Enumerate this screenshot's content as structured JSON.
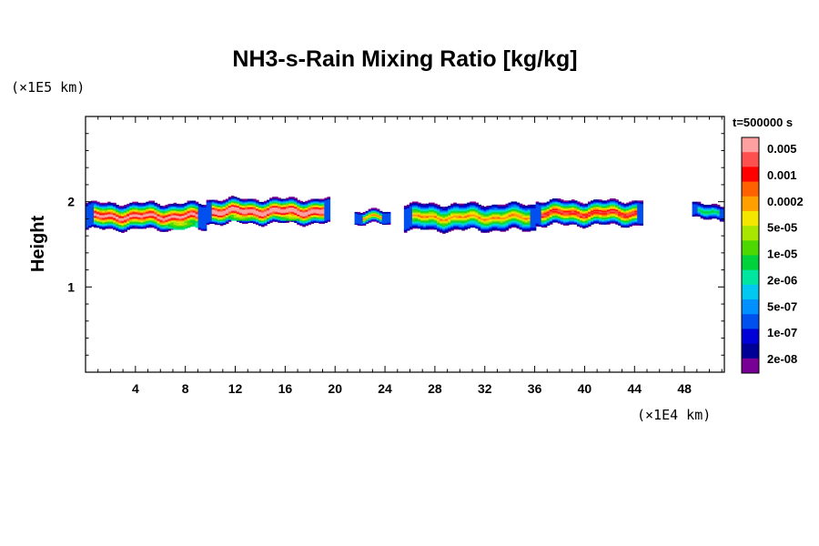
{
  "chart_data": {
    "type": "heatmap",
    "title": "NH3-s-Rain Mixing Ratio [kg/kg]",
    "ylabel": "Height",
    "y_unit": "(×1E5 km)",
    "x_unit": "(×1E4 km)",
    "time_label": "t=500000 s",
    "xlim": [
      0,
      51.2
    ],
    "ylim": [
      0,
      3.0
    ],
    "x_ticks": [
      "4",
      "8",
      "12",
      "16",
      "20",
      "24",
      "28",
      "32",
      "36",
      "40",
      "44",
      "48"
    ],
    "x_tick_values": [
      4,
      8,
      12,
      16,
      20,
      24,
      28,
      32,
      36,
      40,
      44,
      48
    ],
    "y_ticks": [
      "1",
      "2"
    ],
    "y_tick_values": [
      1,
      2
    ],
    "colorbar": {
      "labels": [
        "0.005",
        "0.001",
        "0.0002",
        "5e-05",
        "1e-05",
        "2e-06",
        "5e-07",
        "1e-07",
        "2e-08"
      ],
      "colors": [
        "#ffa0a0",
        "#ff5050",
        "#ff0000",
        "#ff6000",
        "#ff9f00",
        "#f5e600",
        "#a8e600",
        "#4cd800",
        "#00d23c",
        "#00e6a0",
        "#00c8f0",
        "#0090ff",
        "#0050f0",
        "#0000d8",
        "#000096",
        "#780096"
      ]
    },
    "cloud_layer": {
      "description_levels": "blue edges, green interior, yellow/orange cores",
      "base_height": 1.65,
      "top_height": 2.0,
      "segments": [
        {
          "x0": 0.0,
          "x1": 9.5,
          "ybot": 1.68,
          "ytop": 1.97,
          "peak": 11
        },
        {
          "x0": 9.5,
          "x1": 19.5,
          "ybot": 1.75,
          "ytop": 2.02,
          "peak": 12
        },
        {
          "x0": 21.5,
          "x1": 24.2,
          "ybot": 1.74,
          "ytop": 1.88,
          "peak": 8
        },
        {
          "x0": 25.5,
          "x1": 36.0,
          "ybot": 1.67,
          "ytop": 1.96,
          "peak": 8
        },
        {
          "x0": 36.0,
          "x1": 44.5,
          "ybot": 1.73,
          "ytop": 2.0,
          "peak": 10
        },
        {
          "x0": 48.5,
          "x1": 51.2,
          "ybot": 1.8,
          "ytop": 1.96,
          "peak": 5
        }
      ],
      "cores": [
        {
          "x": 3.5,
          "y": 1.8,
          "level": 11
        },
        {
          "x": 7.5,
          "y": 1.74,
          "level": 10
        },
        {
          "x": 12.5,
          "y": 1.84,
          "level": 11
        },
        {
          "x": 16.5,
          "y": 1.84,
          "level": 11
        },
        {
          "x": 39.5,
          "y": 1.84,
          "level": 9
        }
      ]
    }
  }
}
